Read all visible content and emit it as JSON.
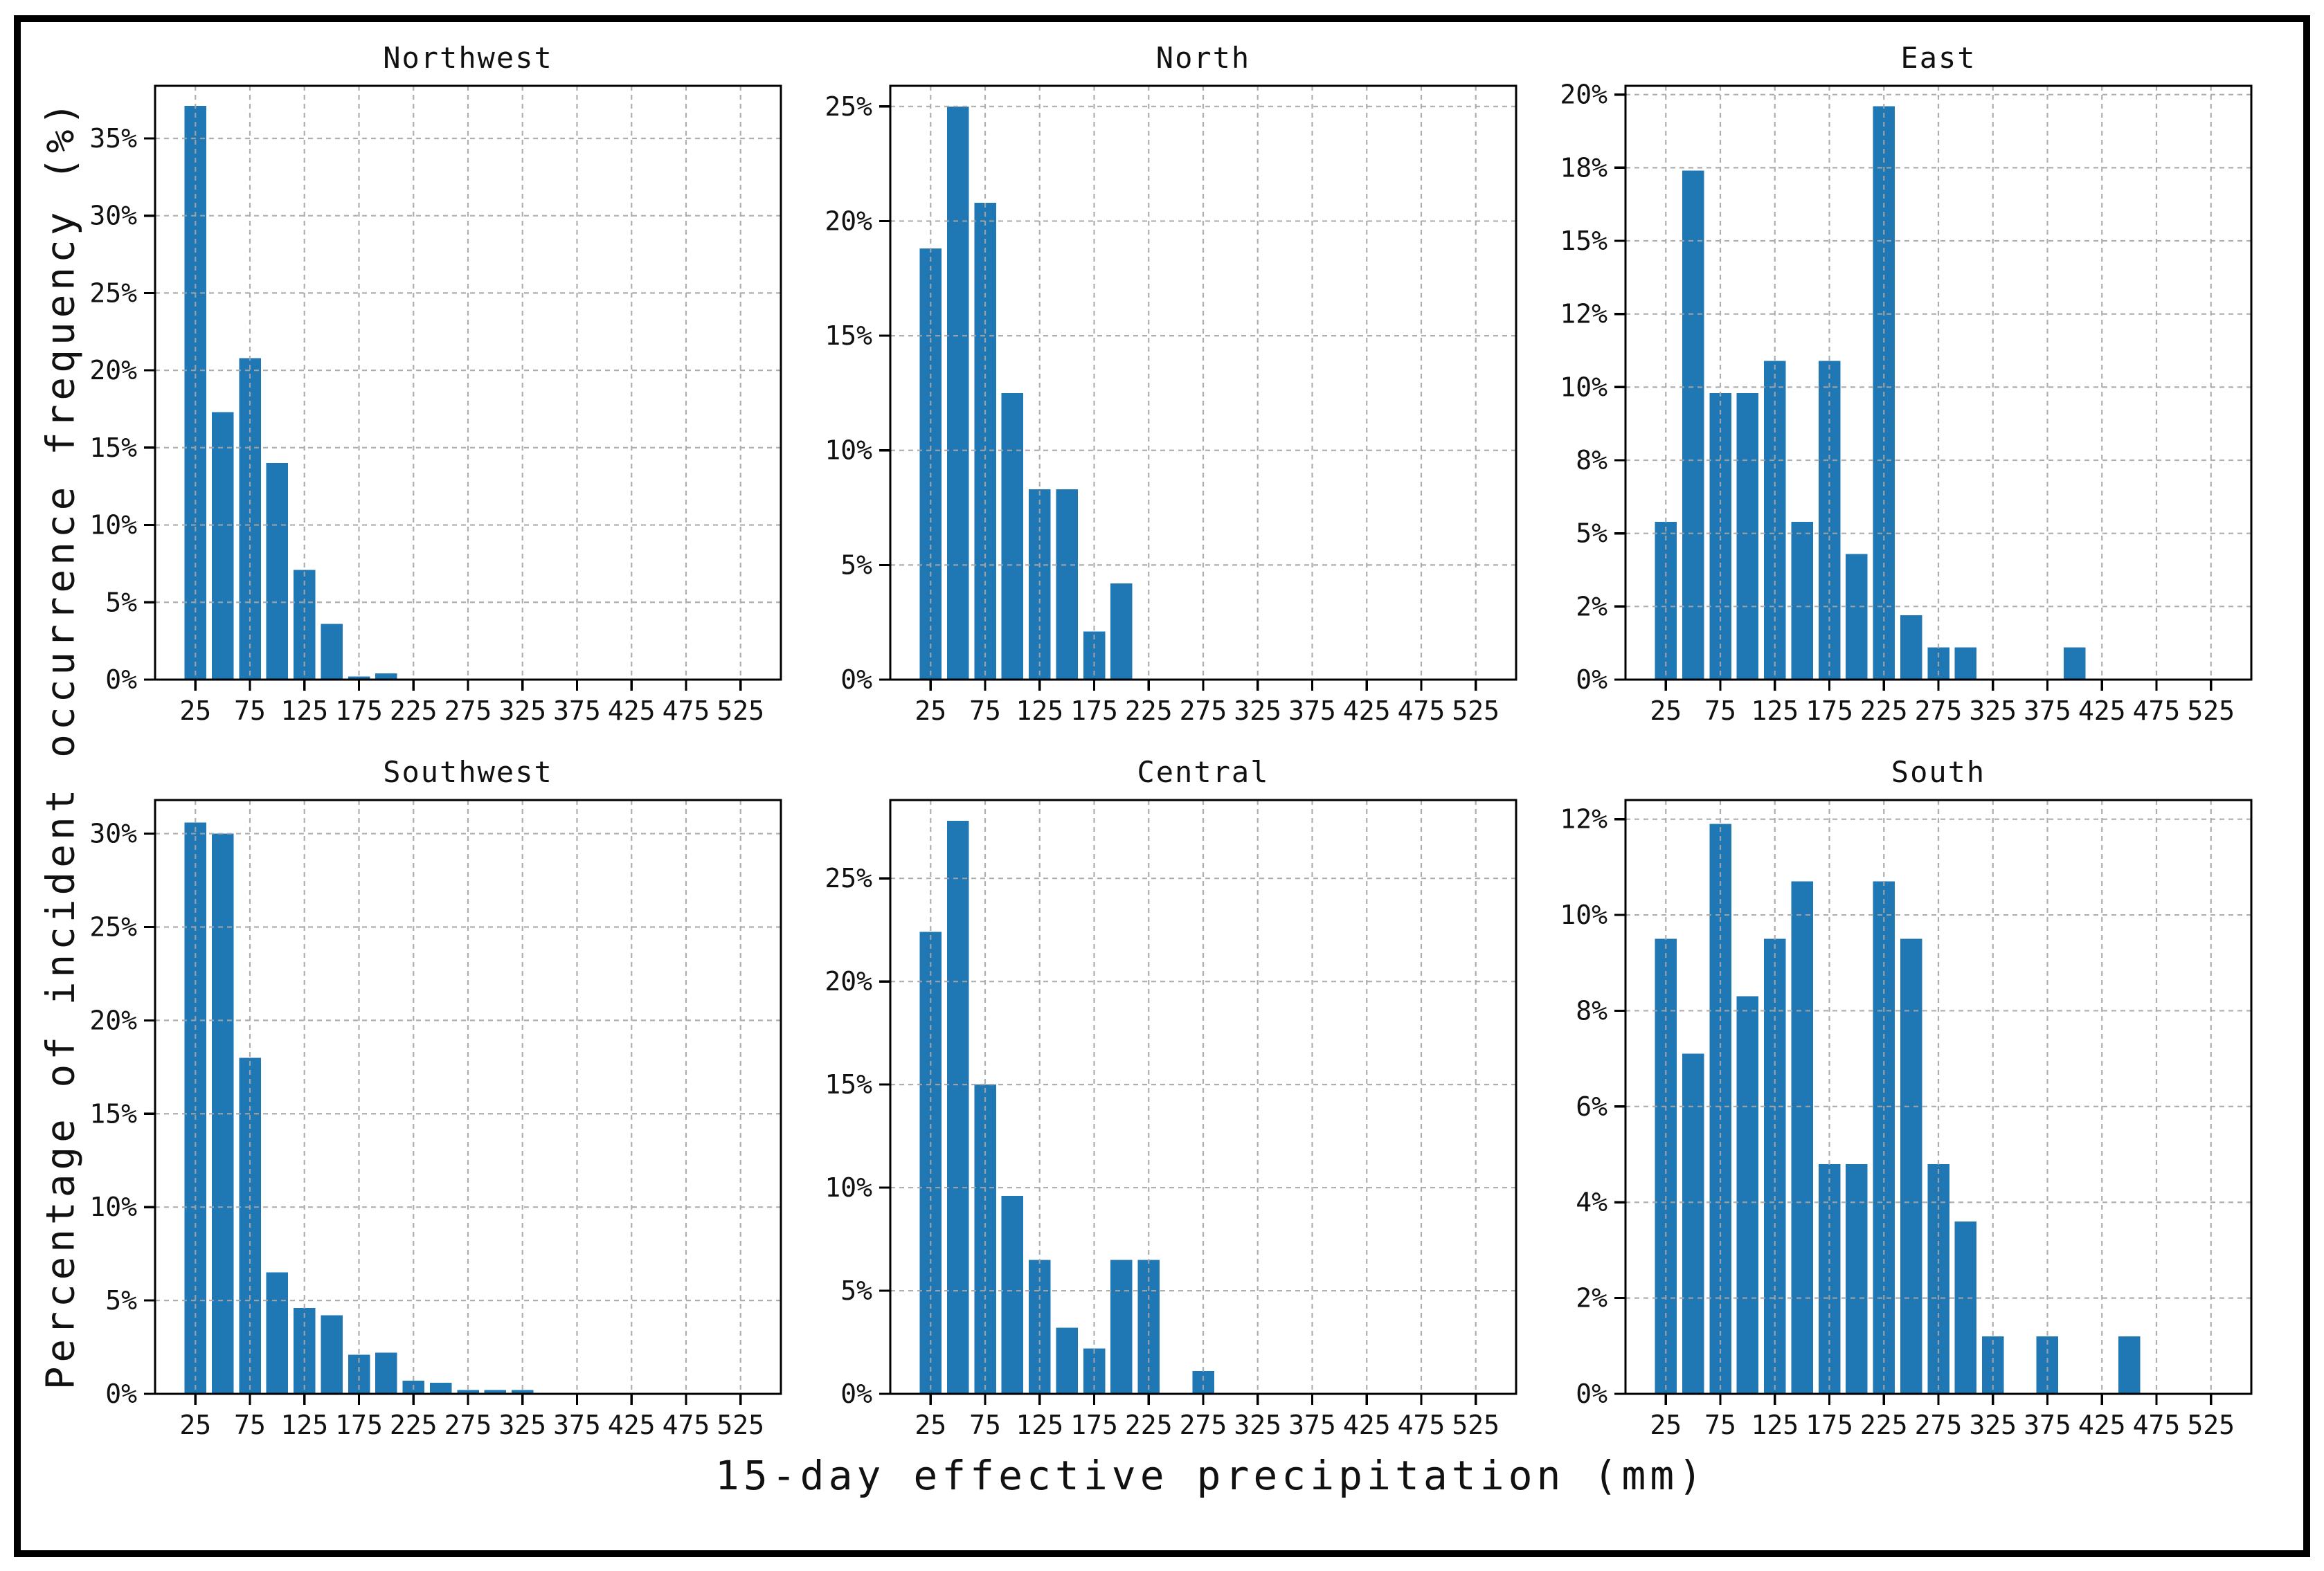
{
  "figure": {
    "ylabel": "Percentage of incident occurrence frequency (%)",
    "xlabel": "15-day effective precipitation (mm)",
    "bar_color": "#1f77b4",
    "grid_color": "#a6a6a6",
    "axis_color": "#000000",
    "background": "#ffffff",
    "bin_width_mm": 25,
    "bar_rel_width": 0.8,
    "x_axis": {
      "min": -12,
      "max": 562,
      "tick_values": [
        25,
        75,
        125,
        175,
        225,
        275,
        325,
        375,
        425,
        475,
        525
      ],
      "tick_labels": [
        "25",
        "75",
        "125",
        "175",
        "225",
        "275",
        "325",
        "375",
        "425",
        "475",
        "525"
      ]
    }
  },
  "chart_data": [
    {
      "type": "bar",
      "title": "Northwest",
      "x": [
        25,
        50,
        75,
        100,
        125,
        150,
        175,
        200
      ],
      "values": [
        37.1,
        17.3,
        20.8,
        14.0,
        7.1,
        3.6,
        0.2,
        0.4
      ],
      "ylim": [
        0,
        38.4
      ],
      "grid": true,
      "yticks": [
        {
          "v": 0,
          "label": "0%"
        },
        {
          "v": 5,
          "label": "5%"
        },
        {
          "v": 10,
          "label": "10%"
        },
        {
          "v": 15,
          "label": "15%"
        },
        {
          "v": 20,
          "label": "20%"
        },
        {
          "v": 25,
          "label": "25%"
        },
        {
          "v": 30,
          "label": "30%"
        },
        {
          "v": 35,
          "label": "35%"
        }
      ]
    },
    {
      "type": "bar",
      "title": "North",
      "x": [
        25,
        50,
        75,
        100,
        125,
        150,
        175,
        200
      ],
      "values": [
        18.8,
        25.0,
        20.8,
        12.5,
        8.3,
        8.3,
        2.1,
        4.2
      ],
      "ylim": [
        0,
        25.9
      ],
      "grid": true,
      "yticks": [
        {
          "v": 0,
          "label": "0%"
        },
        {
          "v": 5,
          "label": "5%"
        },
        {
          "v": 10,
          "label": "10%"
        },
        {
          "v": 15,
          "label": "15%"
        },
        {
          "v": 20,
          "label": "20%"
        },
        {
          "v": 25,
          "label": "25%"
        }
      ]
    },
    {
      "type": "bar",
      "title": "East",
      "x": [
        25,
        50,
        75,
        100,
        125,
        150,
        175,
        200,
        225,
        250,
        275,
        300,
        400
      ],
      "values": [
        5.4,
        17.4,
        9.8,
        9.8,
        10.9,
        5.4,
        10.9,
        4.3,
        19.6,
        2.2,
        1.1,
        1.1,
        1.1
      ],
      "ylim": [
        0,
        20.3
      ],
      "grid": true,
      "yticks": [
        {
          "v": 0,
          "label": "0%"
        },
        {
          "v": 2.5,
          "label": "2%"
        },
        {
          "v": 5,
          "label": "5%"
        },
        {
          "v": 7.5,
          "label": "8%"
        },
        {
          "v": 10,
          "label": "10%"
        },
        {
          "v": 12.5,
          "label": "12%"
        },
        {
          "v": 15,
          "label": "15%"
        },
        {
          "v": 17.5,
          "label": "18%"
        },
        {
          "v": 20,
          "label": "20%"
        }
      ]
    },
    {
      "type": "bar",
      "title": "Southwest",
      "x": [
        25,
        50,
        75,
        100,
        125,
        150,
        175,
        200,
        225,
        250,
        275,
        300,
        325
      ],
      "values": [
        30.6,
        30.0,
        18.0,
        6.5,
        4.6,
        4.2,
        2.1,
        2.2,
        0.7,
        0.6,
        0.2,
        0.2,
        0.2
      ],
      "ylim": [
        0,
        31.8
      ],
      "grid": true,
      "yticks": [
        {
          "v": 0,
          "label": "0%"
        },
        {
          "v": 5,
          "label": "5%"
        },
        {
          "v": 10,
          "label": "10%"
        },
        {
          "v": 15,
          "label": "15%"
        },
        {
          "v": 20,
          "label": "20%"
        },
        {
          "v": 25,
          "label": "25%"
        },
        {
          "v": 30,
          "label": "30%"
        }
      ]
    },
    {
      "type": "bar",
      "title": "Central",
      "x": [
        25,
        50,
        75,
        100,
        125,
        150,
        175,
        200,
        225,
        275
      ],
      "values": [
        22.4,
        27.8,
        15.0,
        9.6,
        6.5,
        3.2,
        2.2,
        6.5,
        6.5,
        1.1
      ],
      "ylim": [
        0,
        28.8
      ],
      "grid": true,
      "yticks": [
        {
          "v": 0,
          "label": "0%"
        },
        {
          "v": 5,
          "label": "5%"
        },
        {
          "v": 10,
          "label": "10%"
        },
        {
          "v": 15,
          "label": "15%"
        },
        {
          "v": 20,
          "label": "20%"
        },
        {
          "v": 25,
          "label": "25%"
        }
      ]
    },
    {
      "type": "bar",
      "title": "South",
      "x": [
        25,
        50,
        75,
        100,
        125,
        150,
        175,
        200,
        225,
        250,
        275,
        300,
        325,
        375,
        450
      ],
      "values": [
        9.5,
        7.1,
        11.9,
        8.3,
        9.5,
        10.7,
        4.8,
        4.8,
        10.7,
        9.5,
        4.8,
        3.6,
        1.2,
        1.2,
        1.2
      ],
      "ylim": [
        0,
        12.4
      ],
      "grid": true,
      "yticks": [
        {
          "v": 0,
          "label": "0%"
        },
        {
          "v": 2,
          "label": "2%"
        },
        {
          "v": 4,
          "label": "4%"
        },
        {
          "v": 6,
          "label": "6%"
        },
        {
          "v": 8,
          "label": "8%"
        },
        {
          "v": 10,
          "label": "10%"
        },
        {
          "v": 12,
          "label": "12%"
        }
      ]
    }
  ]
}
